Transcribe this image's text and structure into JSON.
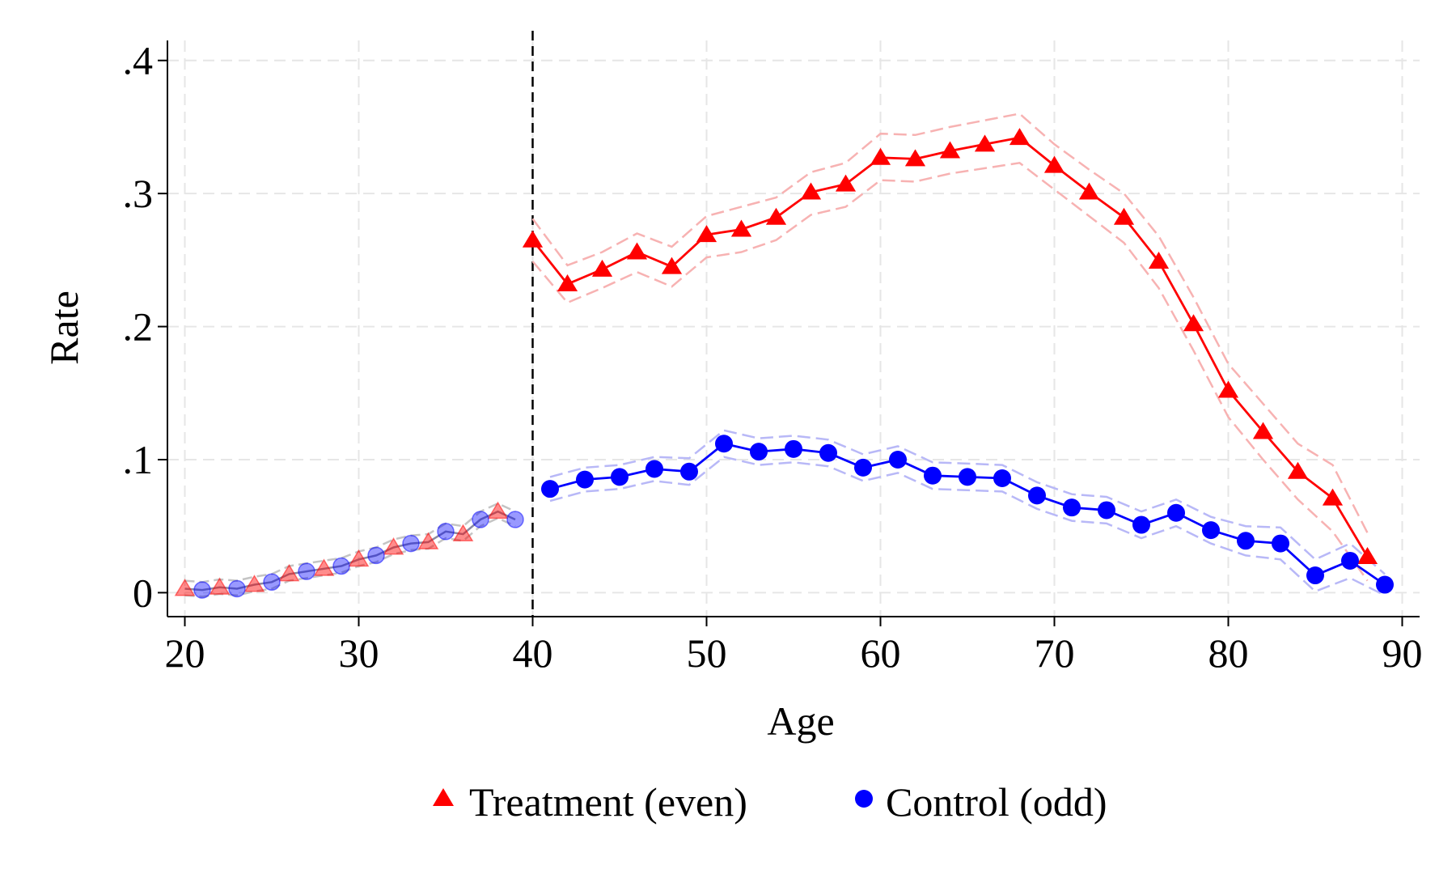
{
  "chart_data": {
    "type": "line",
    "title": "",
    "xlabel": "Age",
    "ylabel": "Rate",
    "xlim": [
      19,
      91
    ],
    "ylim": [
      -0.018,
      0.412
    ],
    "xticks": [
      20,
      30,
      40,
      50,
      60,
      70,
      80,
      90
    ],
    "xtick_labels": [
      "20",
      "30",
      "40",
      "50",
      "60",
      "70",
      "80",
      "90"
    ],
    "yticks": [
      0,
      0.1,
      0.2,
      0.3,
      0.4
    ],
    "ytick_labels": [
      "0",
      ".1",
      ".2",
      ".3",
      ".4"
    ],
    "grid": true,
    "cutoff": 40,
    "legend_position": "bottom",
    "colors": {
      "treatment": "#ff0000",
      "control": "#0000ff",
      "treatment_ci": "#f7b2b2",
      "control_ci": "#b8b8f7",
      "pre_line": "#8a8aa0",
      "pre_ci": "#c4c4c4",
      "grid": "#e6e6e6",
      "cutoff": "#000000"
    },
    "series": [
      {
        "name": "Treatment (even)",
        "marker": "triangle",
        "pre_cutoff": [
          [
            20,
            0.003
          ],
          [
            22,
            0.004
          ],
          [
            24,
            0.006
          ],
          [
            26,
            0.014
          ],
          [
            28,
            0.018
          ],
          [
            30,
            0.025
          ],
          [
            32,
            0.034
          ],
          [
            34,
            0.038
          ],
          [
            36,
            0.044
          ],
          [
            38,
            0.061
          ]
        ],
        "x": [
          40,
          42,
          44,
          46,
          48,
          50,
          52,
          54,
          56,
          58,
          60,
          62,
          64,
          66,
          68,
          70,
          72,
          74,
          76,
          78,
          80,
          82,
          84,
          86,
          88
        ],
        "values": [
          0.265,
          0.232,
          0.243,
          0.256,
          0.245,
          0.269,
          0.273,
          0.282,
          0.301,
          0.307,
          0.327,
          0.326,
          0.332,
          0.337,
          0.342,
          0.321,
          0.301,
          0.282,
          0.249,
          0.202,
          0.152,
          0.121,
          0.091,
          0.071,
          0.027
        ],
        "ci_upper": [
          0.281,
          0.246,
          0.256,
          0.27,
          0.26,
          0.283,
          0.29,
          0.297,
          0.316,
          0.323,
          0.345,
          0.344,
          0.35,
          0.355,
          0.36,
          0.337,
          0.318,
          0.3,
          0.268,
          0.222,
          0.172,
          0.142,
          0.112,
          0.096,
          0.045
        ],
        "ci_lower": [
          0.249,
          0.218,
          0.229,
          0.241,
          0.23,
          0.252,
          0.256,
          0.265,
          0.284,
          0.29,
          0.31,
          0.309,
          0.315,
          0.319,
          0.323,
          0.303,
          0.283,
          0.263,
          0.229,
          0.182,
          0.132,
          0.1,
          0.07,
          0.046,
          0.009
        ]
      },
      {
        "name": "Control (odd)",
        "marker": "circle",
        "pre_cutoff": [
          [
            21,
            0.002
          ],
          [
            23,
            0.003
          ],
          [
            25,
            0.008
          ],
          [
            27,
            0.016
          ],
          [
            29,
            0.02
          ],
          [
            31,
            0.028
          ],
          [
            33,
            0.037
          ],
          [
            35,
            0.046
          ],
          [
            37,
            0.055
          ],
          [
            39,
            0.055
          ]
        ],
        "x": [
          41,
          43,
          45,
          47,
          49,
          51,
          53,
          55,
          57,
          59,
          61,
          63,
          65,
          67,
          69,
          71,
          73,
          75,
          77,
          79,
          81,
          83,
          85,
          87,
          89
        ],
        "values": [
          0.078,
          0.085,
          0.087,
          0.093,
          0.091,
          0.112,
          0.106,
          0.108,
          0.105,
          0.094,
          0.1,
          0.088,
          0.087,
          0.086,
          0.073,
          0.064,
          0.062,
          0.051,
          0.06,
          0.047,
          0.039,
          0.037,
          0.013,
          0.024,
          0.006
        ],
        "ci_upper": [
          0.087,
          0.094,
          0.096,
          0.102,
          0.101,
          0.122,
          0.116,
          0.118,
          0.115,
          0.104,
          0.11,
          0.098,
          0.097,
          0.096,
          0.083,
          0.074,
          0.072,
          0.061,
          0.07,
          0.057,
          0.05,
          0.049,
          0.025,
          0.037,
          0.014
        ],
        "ci_lower": [
          0.069,
          0.076,
          0.078,
          0.084,
          0.081,
          0.102,
          0.096,
          0.098,
          0.095,
          0.084,
          0.09,
          0.078,
          0.077,
          0.076,
          0.063,
          0.054,
          0.052,
          0.041,
          0.05,
          0.037,
          0.028,
          0.025,
          0.001,
          0.011,
          -0.002
        ]
      }
    ]
  }
}
